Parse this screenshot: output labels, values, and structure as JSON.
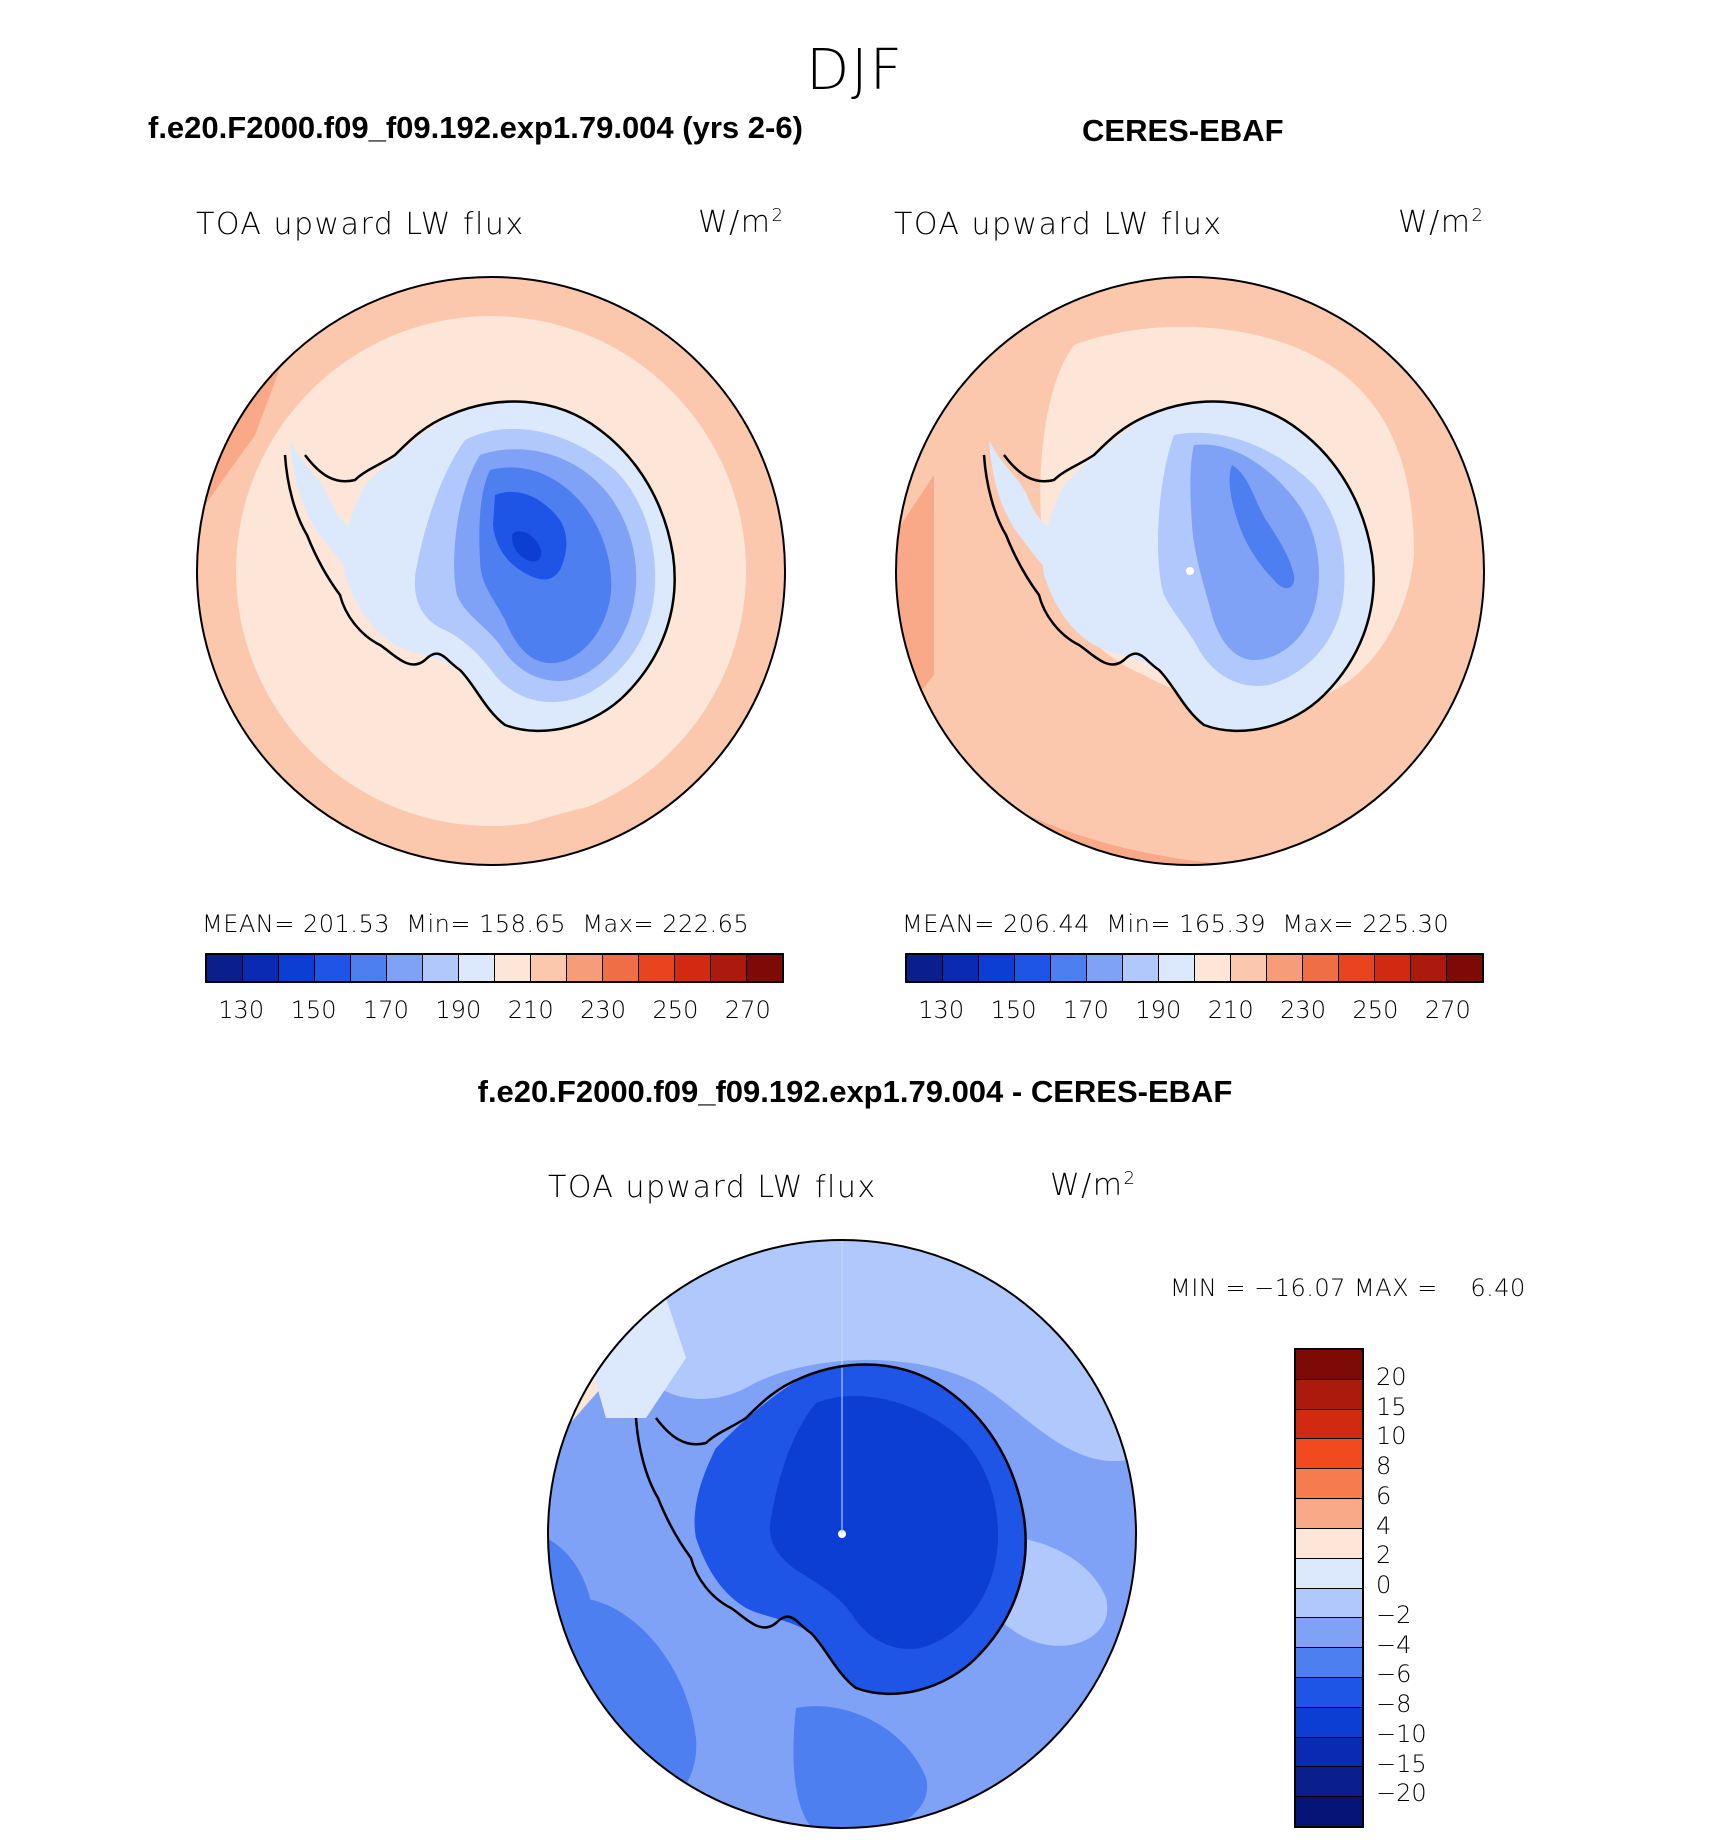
{
  "season": "DJF",
  "panels": {
    "model": {
      "title": "f.e20.F2000.f09_f09.192.exp1.79.004 (yrs 2-6)",
      "variable": "TOA upward LW flux",
      "units": "W/m",
      "units_sup": "2",
      "mean_label": "MEAN=",
      "mean": "201.53",
      "min_label": "Min=",
      "min": "158.65",
      "max_label": "Max=",
      "max": "222.65"
    },
    "obs": {
      "title": "CERES-EBAF",
      "variable": "TOA upward LW flux",
      "units": "W/m",
      "units_sup": "2",
      "mean_label": "MEAN=",
      "mean": "206.44",
      "min_label": "Min=",
      "min": "165.39",
      "max_label": "Max=",
      "max": "225.30"
    },
    "diff": {
      "title": "f.e20.F2000.f09_f09.192.exp1.79.004 - CERES-EBAF",
      "variable": "TOA upward LW flux",
      "units": "W/m",
      "units_sup": "2",
      "minmax_text": "MIN = −16.07 MAX =    6.40"
    }
  },
  "colorbar_abs": {
    "colors": [
      "#0a1e8c",
      "#0b2ab4",
      "#0d3ed4",
      "#1f55e6",
      "#4d7ff0",
      "#7fa2f6",
      "#b0c8fb",
      "#dce9fd",
      "#fde6d8",
      "#fbc7ad",
      "#f79c78",
      "#f06e46",
      "#e84420",
      "#d22a10",
      "#ab1a0c",
      "#7e0a05"
    ],
    "labels": [
      "130",
      "150",
      "170",
      "190",
      "210",
      "230",
      "250",
      "270"
    ]
  },
  "colorbar_diff": {
    "colors": [
      "#7e0a05",
      "#ab1a0c",
      "#d22a10",
      "#f04a1e",
      "#f67c50",
      "#f9a988",
      "#fde6d8",
      "#dce9fd",
      "#b0c8fb",
      "#7fa2f6",
      "#4d7ff0",
      "#1f55e6",
      "#0d3ed4",
      "#0b2ab4",
      "#0a1e8c",
      "#061478"
    ],
    "labels": [
      "20",
      "15",
      "10",
      "8",
      "6",
      "4",
      "2",
      "0",
      "−2",
      "−4",
      "−6",
      "−8",
      "−10",
      "−15",
      "−20"
    ]
  }
}
